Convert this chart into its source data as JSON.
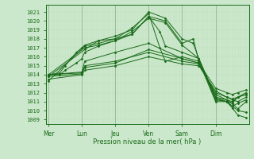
{
  "xlabel": "Pression niveau de la mer( hPa )",
  "bg_color": "#cce8cc",
  "grid_color_minor": "#bbddbb",
  "grid_color_major": "#99bb99",
  "line_color": "#1a6b1a",
  "ylim": [
    1008.5,
    1021.8
  ],
  "yticks": [
    1009,
    1010,
    1011,
    1012,
    1013,
    1014,
    1015,
    1016,
    1017,
    1018,
    1019,
    1020,
    1021
  ],
  "day_labels": [
    "Mer",
    "Lun",
    "Jeu",
    "Ven",
    "Sam",
    "Dim"
  ],
  "day_positions": [
    0,
    12,
    24,
    36,
    48,
    60
  ],
  "xlim": [
    -1,
    72
  ],
  "lines": [
    [
      0,
      1013.3,
      13,
      1017.2,
      18,
      1017.5,
      24,
      1018.0,
      30,
      1018.5,
      36,
      1020.5,
      42,
      1020.0,
      48,
      1017.5,
      52,
      1018.0,
      54,
      1015.5,
      60,
      1011.0,
      64,
      1011.0,
      66,
      1010.5,
      68,
      1010.8,
      71,
      1011.2
    ],
    [
      0,
      1013.8,
      13,
      1016.8,
      18,
      1017.8,
      24,
      1018.3,
      30,
      1019.0,
      36,
      1021.0,
      42,
      1020.3,
      48,
      1018.0,
      52,
      1017.5,
      54,
      1015.8,
      60,
      1011.2,
      64,
      1011.0,
      66,
      1010.3,
      68,
      1009.5,
      71,
      1009.2
    ],
    [
      0,
      1014.0,
      13,
      1017.0,
      18,
      1017.3,
      24,
      1017.8,
      30,
      1018.8,
      36,
      1020.3,
      42,
      1019.8,
      48,
      1017.3,
      54,
      1015.8,
      60,
      1011.5,
      64,
      1011.2,
      66,
      1010.8,
      68,
      1011.5,
      71,
      1011.8
    ],
    [
      0,
      1014.0,
      12,
      1014.3,
      13,
      1015.5,
      24,
      1016.5,
      36,
      1017.5,
      48,
      1015.8,
      54,
      1015.3,
      60,
      1011.8,
      64,
      1011.2,
      66,
      1011.0,
      68,
      1011.5,
      71,
      1011.8
    ],
    [
      0,
      1014.0,
      12,
      1014.2,
      13,
      1015.0,
      24,
      1015.5,
      36,
      1016.5,
      48,
      1015.5,
      54,
      1015.2,
      60,
      1012.0,
      64,
      1011.5,
      66,
      1011.2,
      68,
      1011.0,
      71,
      1011.5
    ],
    [
      0,
      1013.5,
      12,
      1014.0,
      13,
      1014.5,
      24,
      1015.0,
      36,
      1016.0,
      48,
      1015.2,
      54,
      1015.0,
      60,
      1012.2,
      64,
      1011.5,
      66,
      1011.3,
      68,
      1011.5,
      71,
      1012.0
    ],
    [
      0,
      1013.8,
      12,
      1014.1,
      13,
      1014.8,
      24,
      1015.3,
      36,
      1016.8,
      48,
      1015.8,
      54,
      1015.3,
      60,
      1012.5,
      64,
      1012.0,
      66,
      1011.8,
      68,
      1012.0,
      71,
      1012.3
    ],
    [
      0,
      1014.0,
      4,
      1014.2,
      6,
      1015.0,
      10,
      1016.5,
      12,
      1017.0,
      13,
      1017.3,
      18,
      1017.8,
      24,
      1018.0,
      30,
      1019.2,
      36,
      1020.8,
      40,
      1017.0,
      42,
      1015.5,
      48,
      1016.0,
      54,
      1015.5,
      60,
      1011.3,
      64,
      1011.0,
      66,
      1010.5,
      68,
      1010.0,
      71,
      1009.8
    ],
    [
      0,
      1014.0,
      4,
      1014.0,
      6,
      1014.5,
      10,
      1015.3,
      12,
      1015.8,
      13,
      1016.5,
      18,
      1017.2,
      24,
      1017.8,
      30,
      1018.5,
      36,
      1020.5,
      40,
      1018.8,
      42,
      1017.2,
      48,
      1016.5,
      54,
      1015.8,
      60,
      1011.5,
      64,
      1011.0,
      66,
      1010.8,
      68,
      1010.2,
      71,
      1011.0
    ]
  ],
  "marker_size": 1.5,
  "linewidth": 0.7,
  "xlabel_fontsize": 6.0,
  "tick_fontsize": 5.0
}
